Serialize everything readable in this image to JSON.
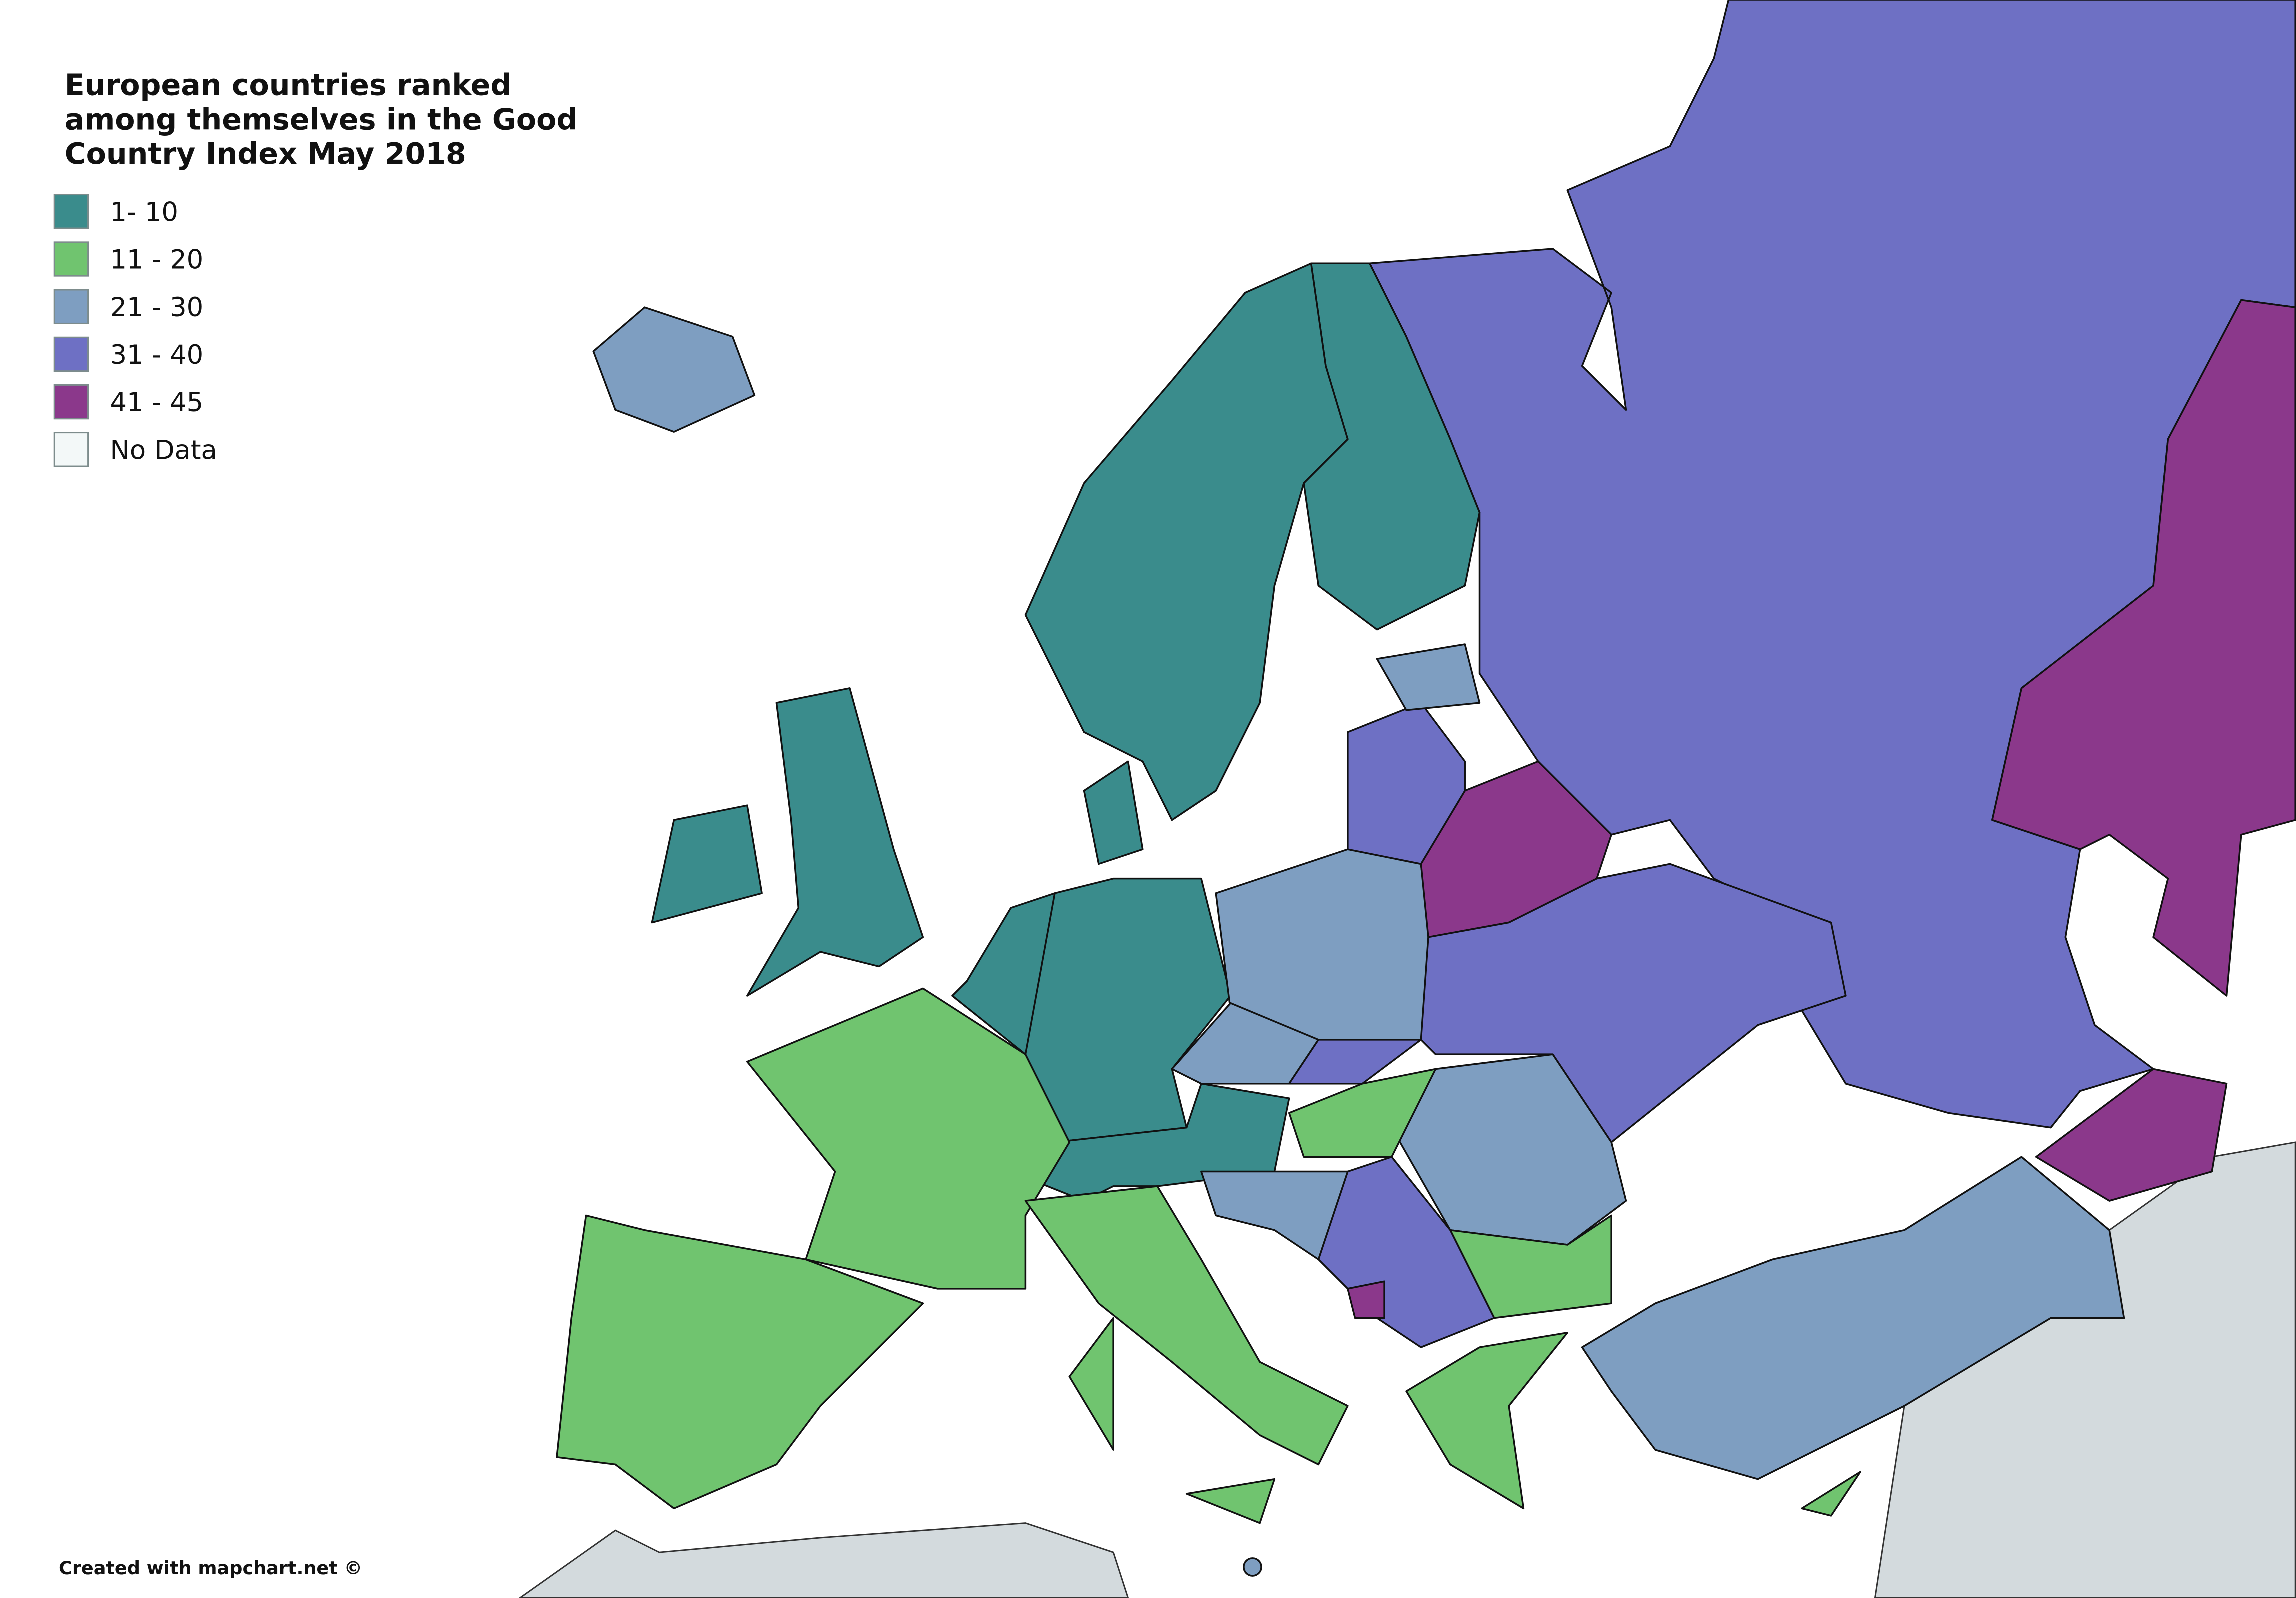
{
  "map": {
    "title_lines": [
      "European countries ranked",
      "among themselves in the Good",
      "Country Index May 2018"
    ],
    "legend": [
      {
        "label": "1- 10",
        "color": "#3a8c8c"
      },
      {
        "label": "11 - 20",
        "color": "#70c46f"
      },
      {
        "label": "21 - 30",
        "color": "#7e9ec1"
      },
      {
        "label": "31 - 40",
        "color": "#6e70c4"
      },
      {
        "label": "41 - 45",
        "color": "#8b388b"
      },
      {
        "label": "No Data",
        "color": "#f3f8f8"
      }
    ],
    "credit": "Created with mapchart.net ©"
  }
}
